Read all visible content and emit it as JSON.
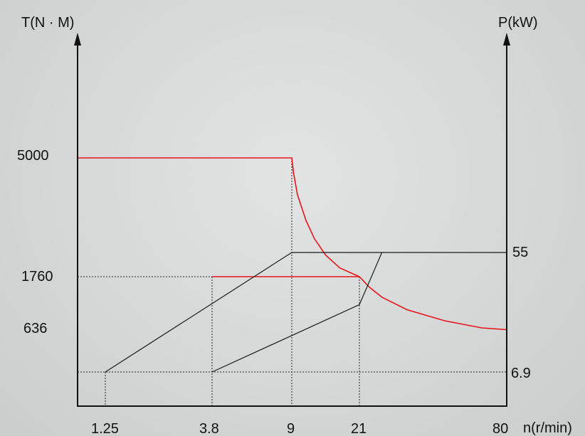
{
  "chart_data": {
    "type": "line",
    "title": "",
    "left_axis_label": "T(N · M)",
    "right_axis_label": "P(kW)",
    "x_axis_label": "n(r/min)",
    "x_ticks": [
      "1.25",
      "3.8",
      "9",
      "21",
      "80"
    ],
    "torque_ticks": [
      "5000",
      "1760",
      "636"
    ],
    "power_ticks": [
      "55",
      "6.9"
    ],
    "colors": {
      "torque": "#e8141c",
      "power": "#1a1a1a",
      "guide": "#222222"
    },
    "series": [
      {
        "points": [
          [
            0,
            5000
          ],
          [
            9,
            5000
          ],
          [
            9.3,
            4600
          ],
          [
            10,
            4000
          ],
          [
            11.5,
            3300
          ],
          [
            13,
            2800
          ],
          [
            15,
            2350
          ],
          [
            17.5,
            2000
          ],
          [
            21,
            1760
          ],
          [
            25,
            1550
          ],
          [
            30,
            1350
          ],
          [
            40,
            1100
          ],
          [
            55,
            880
          ],
          [
            70,
            735
          ],
          [
            80,
            700
          ]
        ]
      },
      {
        "points": [
          [
            3.8,
            1760
          ],
          [
            21,
            1760
          ]
        ]
      },
      {
        "points": [
          [
            1.25,
            6.9
          ],
          [
            9,
            55
          ],
          [
            80,
            55
          ]
        ]
      },
      {
        "points": [
          [
            3.8,
            6.9
          ],
          [
            21,
            34
          ],
          [
            30,
            55
          ]
        ]
      }
    ]
  }
}
